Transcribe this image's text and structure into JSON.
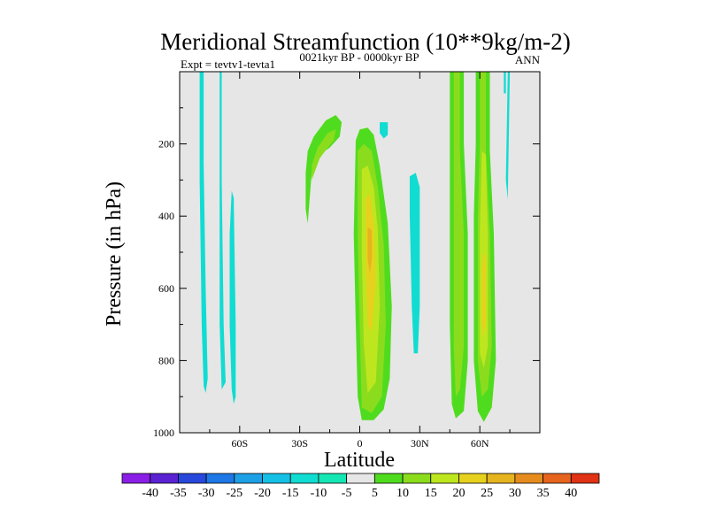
{
  "chart_data": {
    "type": "contour",
    "title": "Meridional Streamfunction (10**9kg/m-2)",
    "left_label": "Expt = tevtv1-tevta1",
    "center_label": "0021kyr BP - 0000kyr BP",
    "right_label": "ANN",
    "xlabel": "Latitude",
    "ylabel": "Pressure (in hPa)",
    "xlim": [
      -90,
      90
    ],
    "ylim": [
      1000,
      0
    ],
    "x_ticks": [
      {
        "value": -60,
        "label": "60S"
      },
      {
        "value": -30,
        "label": "30S"
      },
      {
        "value": 0,
        "label": "0"
      },
      {
        "value": 30,
        "label": "30N"
      },
      {
        "value": 60,
        "label": "60N"
      }
    ],
    "y_ticks": [
      {
        "value": 200,
        "label": "200"
      },
      {
        "value": 400,
        "label": "400"
      },
      {
        "value": 600,
        "label": "600"
      },
      {
        "value": 800,
        "label": "800"
      },
      {
        "value": 1000,
        "label": "1000"
      }
    ],
    "background_color": "#e6e6e6",
    "colorbar": {
      "levels": [
        "-40",
        "-35",
        "-30",
        "-25",
        "-20",
        "-15",
        "-10",
        "-5",
        "5",
        "10",
        "15",
        "20",
        "25",
        "30",
        "35",
        "40"
      ],
      "colors": [
        "#8a1ee6",
        "#5a22d2",
        "#2848dc",
        "#1e78e6",
        "#1ea0e6",
        "#14c0e6",
        "#10dcd2",
        "#14e6b4",
        "#e6e6e6",
        "#50dc1e",
        "#8cdc1e",
        "#bee61e",
        "#e6d21e",
        "#e6b41e",
        "#e68c1e",
        "#e6641e",
        "#e03214"
      ]
    },
    "regions": [
      {
        "name": "sh-high-lat-band-a",
        "level": -10,
        "points": [
          [
            -80,
            0
          ],
          [
            -78,
            0
          ],
          [
            -78,
            250
          ],
          [
            -77,
            600
          ],
          [
            -76,
            850
          ],
          [
            -77,
            890
          ],
          [
            -78,
            870
          ],
          [
            -79,
            700
          ],
          [
            -80,
            300
          ]
        ]
      },
      {
        "name": "sh-high-lat-band-b",
        "level": -10,
        "points": [
          [
            -70,
            0
          ],
          [
            -69,
            0
          ],
          [
            -69,
            300
          ],
          [
            -68,
            700
          ],
          [
            -67,
            860
          ],
          [
            -69,
            880
          ],
          [
            -70,
            700
          ],
          [
            -70,
            300
          ]
        ]
      },
      {
        "name": "sh-high-lat-band-c",
        "level": -10,
        "points": [
          [
            -64,
            330
          ],
          [
            -63,
            350
          ],
          [
            -62,
            700
          ],
          [
            -62,
            900
          ],
          [
            -63,
            920
          ],
          [
            -64,
            880
          ],
          [
            -65,
            700
          ],
          [
            -65,
            450
          ]
        ]
      },
      {
        "name": "sh-upper-hook",
        "level": 5,
        "points": [
          [
            -26,
            420
          ],
          [
            -27,
            380
          ],
          [
            -27,
            280
          ],
          [
            -26,
            220
          ],
          [
            -23,
            180
          ],
          [
            -17,
            135
          ],
          [
            -12,
            120
          ],
          [
            -9,
            140
          ],
          [
            -10,
            180
          ],
          [
            -15,
            210
          ],
          [
            -20,
            230
          ],
          [
            -24,
            280
          ]
        ]
      },
      {
        "name": "tropical-cell-outer",
        "level": 5,
        "points": [
          [
            -2,
            190
          ],
          [
            0,
            160
          ],
          [
            4,
            155
          ],
          [
            7,
            175
          ],
          [
            10,
            260
          ],
          [
            14,
            420
          ],
          [
            16,
            650
          ],
          [
            15,
            850
          ],
          [
            12,
            935
          ],
          [
            7,
            965
          ],
          [
            1,
            965
          ],
          [
            -1,
            900
          ],
          [
            -2,
            700
          ],
          [
            -3,
            450
          ]
        ]
      },
      {
        "name": "tropical-cell-hook-inner",
        "level": 10,
        "points": [
          [
            -24,
            300
          ],
          [
            -24,
            260
          ],
          [
            -21,
            210
          ],
          [
            -16,
            170
          ],
          [
            -12,
            160
          ],
          [
            -13,
            190
          ],
          [
            -16,
            210
          ],
          [
            -20,
            240
          ]
        ]
      },
      {
        "name": "tropical-cell-mid",
        "level": 10,
        "points": [
          [
            -1,
            220
          ],
          [
            2,
            200
          ],
          [
            6,
            220
          ],
          [
            9,
            320
          ],
          [
            12,
            480
          ],
          [
            13,
            700
          ],
          [
            11,
            900
          ],
          [
            6,
            945
          ],
          [
            1,
            930
          ],
          [
            0,
            700
          ],
          [
            -1,
            450
          ]
        ]
      },
      {
        "name": "tropical-cell-inner",
        "level": 15,
        "points": [
          [
            1,
            270
          ],
          [
            4,
            260
          ],
          [
            7,
            320
          ],
          [
            9,
            440
          ],
          [
            10,
            650
          ],
          [
            8,
            860
          ],
          [
            4,
            890
          ],
          [
            2,
            750
          ],
          [
            1,
            500
          ]
        ]
      },
      {
        "name": "tropical-cell-core",
        "level": 20,
        "points": [
          [
            3,
            350
          ],
          [
            5,
            340
          ],
          [
            7,
            420
          ],
          [
            8,
            580
          ],
          [
            6,
            720
          ],
          [
            4,
            700
          ],
          [
            3,
            520
          ]
        ]
      },
      {
        "name": "tropical-cell-max",
        "level": 25,
        "points": [
          [
            4,
            430
          ],
          [
            6,
            440
          ],
          [
            6,
            520
          ],
          [
            5,
            560
          ],
          [
            4,
            520
          ]
        ]
      },
      {
        "name": "small-patch-15n",
        "level": -10,
        "points": [
          [
            10,
            140
          ],
          [
            14,
            140
          ],
          [
            14,
            175
          ],
          [
            12,
            185
          ],
          [
            10,
            170
          ]
        ]
      },
      {
        "name": "nh-subtrop-band",
        "level": -10,
        "points": [
          [
            25,
            290
          ],
          [
            28,
            280
          ],
          [
            30,
            320
          ],
          [
            30,
            650
          ],
          [
            29,
            780
          ],
          [
            27,
            780
          ],
          [
            26,
            650
          ],
          [
            25,
            400
          ]
        ]
      },
      {
        "name": "nh-midlat-band-a-outer",
        "level": 5,
        "points": [
          [
            45,
            0
          ],
          [
            52,
            0
          ],
          [
            52,
            200
          ],
          [
            54,
            450
          ],
          [
            54,
            800
          ],
          [
            52,
            940
          ],
          [
            48,
            960
          ],
          [
            46,
            920
          ],
          [
            45,
            700
          ],
          [
            45,
            300
          ]
        ]
      },
      {
        "name": "nh-midlat-band-a-mid",
        "level": 10,
        "points": [
          [
            47,
            0
          ],
          [
            50,
            0
          ],
          [
            50,
            220
          ],
          [
            52,
            450
          ],
          [
            52,
            760
          ],
          [
            50,
            880
          ],
          [
            48,
            900
          ],
          [
            47,
            760
          ],
          [
            47,
            300
          ]
        ]
      },
      {
        "name": "nh-midlat-band-b-outer",
        "level": 5,
        "points": [
          [
            58,
            0
          ],
          [
            65,
            0
          ],
          [
            65,
            220
          ],
          [
            67,
            450
          ],
          [
            68,
            800
          ],
          [
            66,
            930
          ],
          [
            62,
            970
          ],
          [
            59,
            940
          ],
          [
            57,
            800
          ],
          [
            57,
            400
          ],
          [
            58,
            200
          ]
        ]
      },
      {
        "name": "nh-midlat-band-b-mid",
        "level": 10,
        "points": [
          [
            60,
            0
          ],
          [
            63,
            0
          ],
          [
            63,
            220
          ],
          [
            65,
            450
          ],
          [
            66,
            760
          ],
          [
            64,
            880
          ],
          [
            61,
            900
          ],
          [
            59,
            800
          ],
          [
            59,
            400
          ],
          [
            60,
            200
          ]
        ]
      },
      {
        "name": "nh-midlat-band-b-inner",
        "level": 15,
        "points": [
          [
            61,
            220
          ],
          [
            63,
            230
          ],
          [
            64,
            450
          ],
          [
            64,
            760
          ],
          [
            62,
            820
          ],
          [
            60,
            780
          ],
          [
            60,
            450
          ]
        ]
      },
      {
        "name": "nh-midlat-band-b-core",
        "level": 20,
        "points": [
          [
            62,
            500
          ],
          [
            63,
            510
          ],
          [
            63,
            700
          ],
          [
            62,
            740
          ],
          [
            61,
            700
          ],
          [
            61,
            550
          ]
        ]
      },
      {
        "name": "nh-high-lat-sliver-a",
        "level": -10,
        "points": [
          [
            72,
            0
          ],
          [
            73,
            0
          ],
          [
            73,
            60
          ],
          [
            72,
            60
          ]
        ]
      },
      {
        "name": "nh-high-lat-sliver-b",
        "level": -10,
        "points": [
          [
            74,
            0
          ],
          [
            75,
            0
          ],
          [
            74,
            350
          ],
          [
            74,
            355
          ],
          [
            73,
            300
          ]
        ]
      }
    ]
  }
}
